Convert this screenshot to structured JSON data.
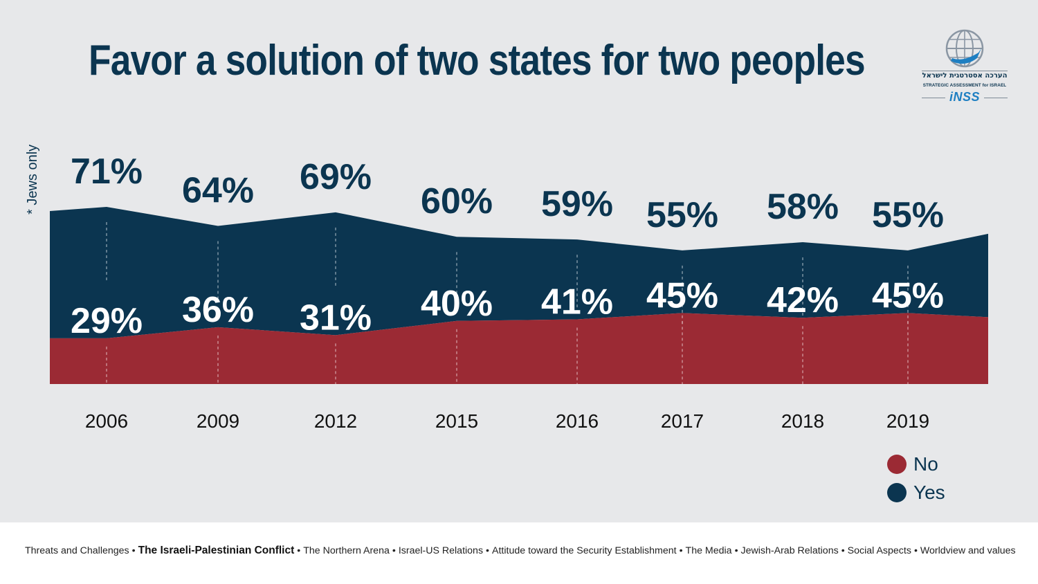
{
  "title": "Favor a solution of two states for two peoples",
  "note": "* Jews only",
  "logo": {
    "hebrew": "הערכה אסטרטגית לישראל",
    "english": "STRATEGIC ASSESSMENT for ISRAEL",
    "wordmark": "iNSS",
    "icon": "globe-icon"
  },
  "chart_data": {
    "type": "area",
    "categories": [
      "2006",
      "2009",
      "2012",
      "2015",
      "2016",
      "2017",
      "2018",
      "2019"
    ],
    "series": [
      {
        "name": "Yes",
        "values": [
          71,
          64,
          69,
          60,
          59,
          55,
          58,
          55
        ],
        "labels": [
          "71%",
          "64%",
          "69%",
          "60%",
          "59%",
          "55%",
          "58%",
          "55%"
        ],
        "color": "#0b3550"
      },
      {
        "name": "No",
        "values": [
          29,
          36,
          31,
          40,
          41,
          45,
          42,
          45
        ],
        "labels": [
          "29%",
          "36%",
          "31%",
          "40%",
          "41%",
          "45%",
          "42%",
          "45%"
        ],
        "color": "#9b2a34"
      }
    ],
    "title": "Favor a solution of two states for two peoples",
    "xlabel": "",
    "ylabel": "",
    "grid": false,
    "legend": "bottom-right"
  },
  "legend": [
    {
      "label": "No",
      "color": "#9b2a34"
    },
    {
      "label": "Yes",
      "color": "#0b3550"
    }
  ],
  "footer": {
    "items": [
      {
        "label": "Threats and Challenges",
        "active": false
      },
      {
        "label": "The Israeli-Palestinian Conflict",
        "active": true
      },
      {
        "label": "The Northern  Arena",
        "active": false
      },
      {
        "label": "Israel-US Relations",
        "active": false
      },
      {
        "label": "Attitude toward the Security Establishment",
        "active": false
      },
      {
        "label": "The Media",
        "active": false
      },
      {
        "label": "Jewish-Arab Relations",
        "active": false
      },
      {
        "label": "Social Aspects",
        "active": false
      },
      {
        "label": "Worldview and values",
        "active": false
      }
    ],
    "separator": "•"
  }
}
